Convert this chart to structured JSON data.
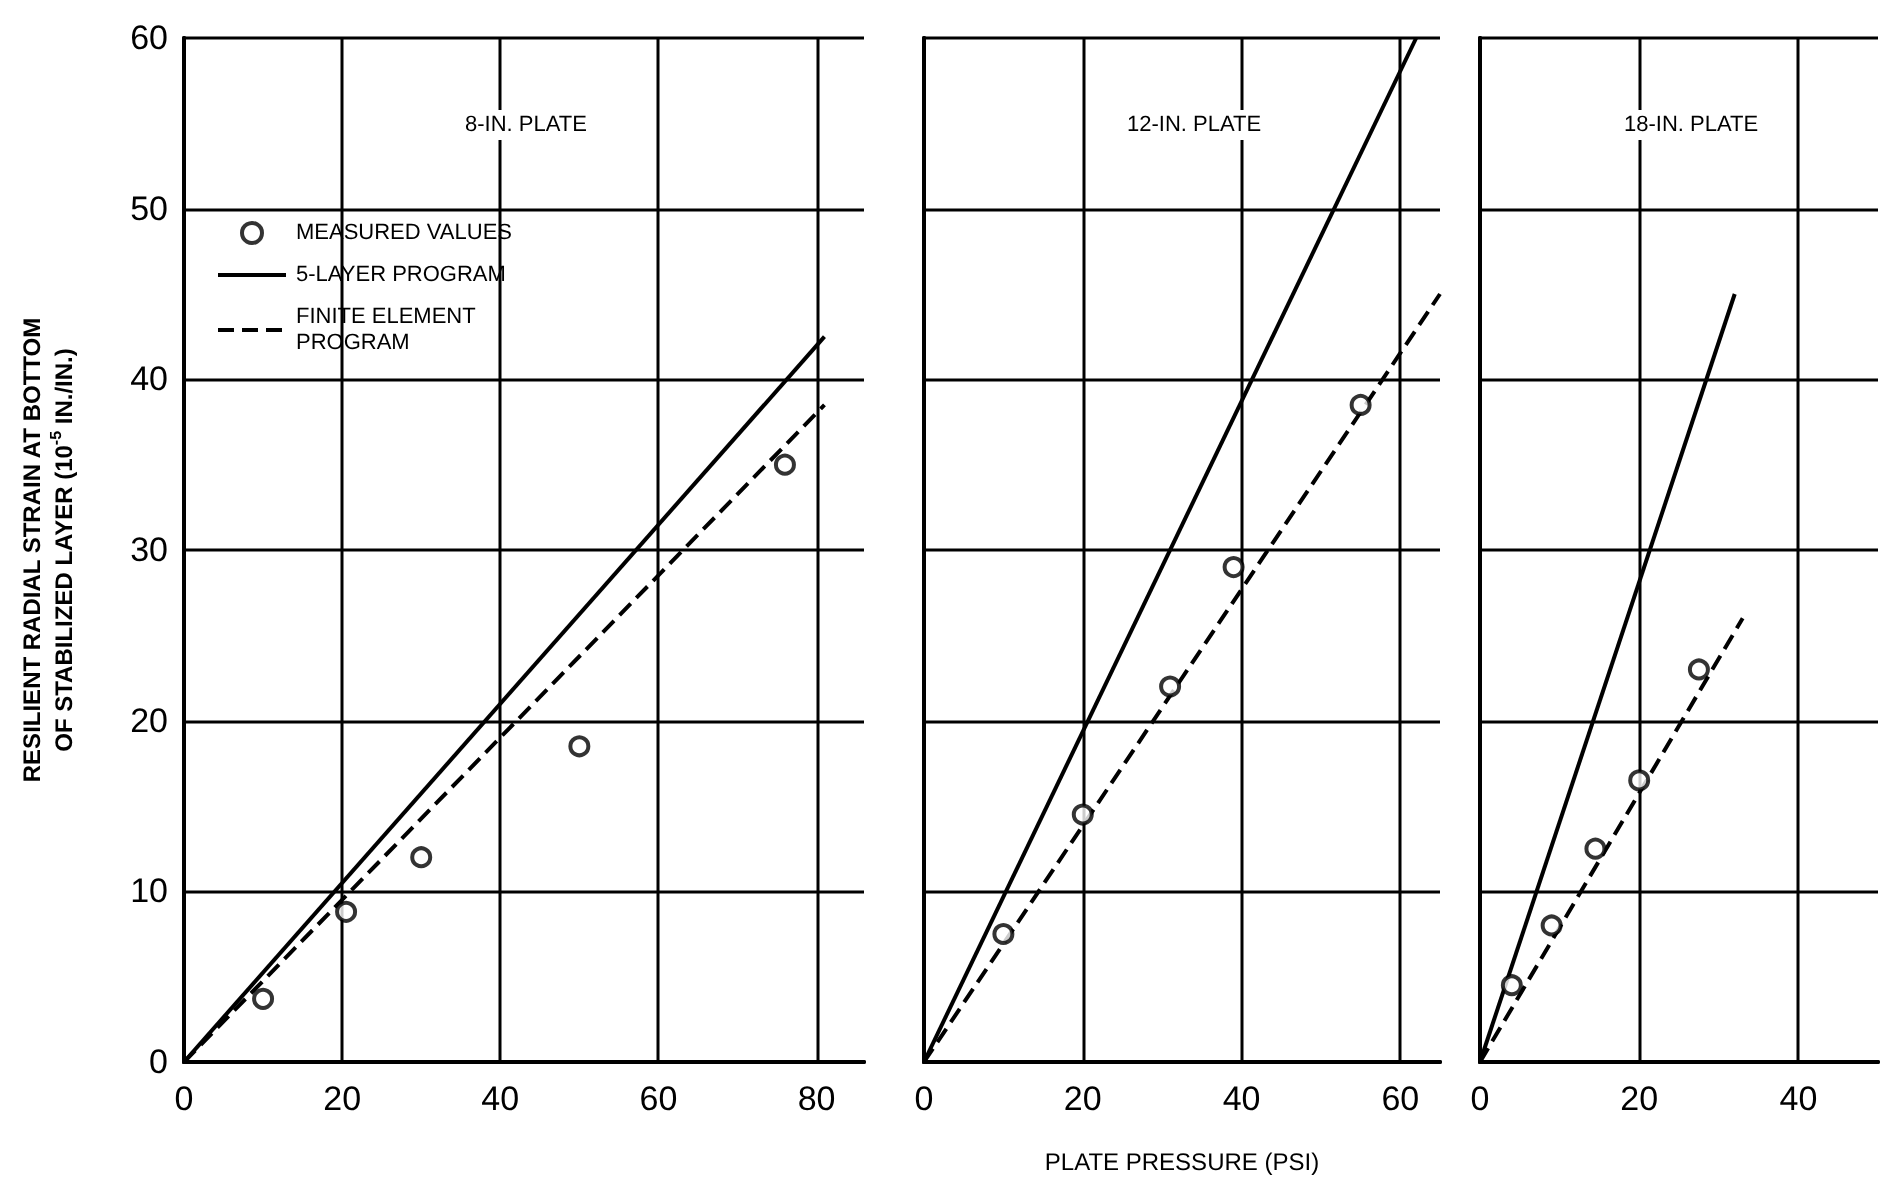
{
  "chart_data": [
    {
      "type": "scatter",
      "title": "8-IN. PLATE",
      "ylabel": "RESILIENT RADIAL STRAIN AT BOTTOM OF STABILIZED LAYER (10$^{-5}$ IN./IN.)",
      "xlim": [
        0,
        86
      ],
      "xticks": [
        0,
        20,
        40,
        60,
        80
      ],
      "ylim": [
        0,
        60
      ],
      "yticks": [
        0,
        10,
        20,
        30,
        40,
        50,
        60
      ],
      "grid": true,
      "legend": "top left",
      "series": [
        {
          "name": "MEASURED VALUES",
          "type": "scatter",
          "marker": "circle",
          "color": "#000000",
          "x": [
            10,
            20.5,
            30,
            50,
            76
          ],
          "values": [
            3.7,
            8.8,
            12,
            18.5,
            35
          ]
        },
        {
          "name": "5-LAYER PROGRAM",
          "type": "line",
          "marker": "none",
          "line_style": "solid",
          "color": "#000000",
          "x": [
            0,
            81
          ],
          "values": [
            0,
            42.5
          ]
        },
        {
          "name": "FINITE ELEMENT PROGRAM",
          "type": "line",
          "marker": "none",
          "line_style": "dashed",
          "color": "#000000",
          "x": [
            0,
            81
          ],
          "values": [
            0,
            38.5
          ]
        }
      ]
    },
    {
      "type": "scatter",
      "title": "12-IN. PLATE",
      "xlabel": "PLATE PRESSURE (PSI)",
      "xlim": [
        0,
        65
      ],
      "xticks": [
        0,
        20,
        40,
        60
      ],
      "ylim": [
        0,
        60
      ],
      "yticks": [
        0,
        10,
        20,
        30,
        40,
        50,
        60
      ],
      "grid": true,
      "tick_labels": "x",
      "series": [
        {
          "type": "scatter",
          "marker": "circle",
          "color": "#000000",
          "x": [
            10,
            20,
            31,
            39,
            55
          ],
          "values": [
            7.5,
            14.5,
            22,
            29,
            38.5
          ]
        },
        {
          "type": "line",
          "marker": "none",
          "line_style": "solid",
          "color": "#000000",
          "x": [
            0,
            62
          ],
          "values": [
            0,
            60
          ]
        },
        {
          "type": "line",
          "marker": "none",
          "line_style": "dashed",
          "color": "#000000",
          "x": [
            0,
            65
          ],
          "values": [
            0,
            45
          ]
        }
      ]
    },
    {
      "type": "scatter",
      "title": "18-IN. PLATE",
      "xlim": [
        0,
        50
      ],
      "xticks": [
        0,
        20,
        40
      ],
      "ylim": [
        0,
        60
      ],
      "yticks": [
        0,
        10,
        20,
        30,
        40,
        50,
        60
      ],
      "grid": true,
      "tick_labels": "x",
      "series": [
        {
          "type": "scatter",
          "marker": "circle",
          "color": "#000000",
          "x": [
            4,
            9,
            14.5,
            20,
            27.5
          ],
          "values": [
            4.5,
            8,
            12.5,
            16.5,
            23
          ]
        },
        {
          "type": "line",
          "marker": "none",
          "line_style": "solid",
          "color": "#000000",
          "x": [
            0,
            32
          ],
          "values": [
            0,
            45
          ]
        },
        {
          "type": "line",
          "marker": "none",
          "line_style": "dashed",
          "color": "#000000",
          "x": [
            0,
            33
          ],
          "values": [
            0,
            26
          ]
        }
      ]
    }
  ]
}
